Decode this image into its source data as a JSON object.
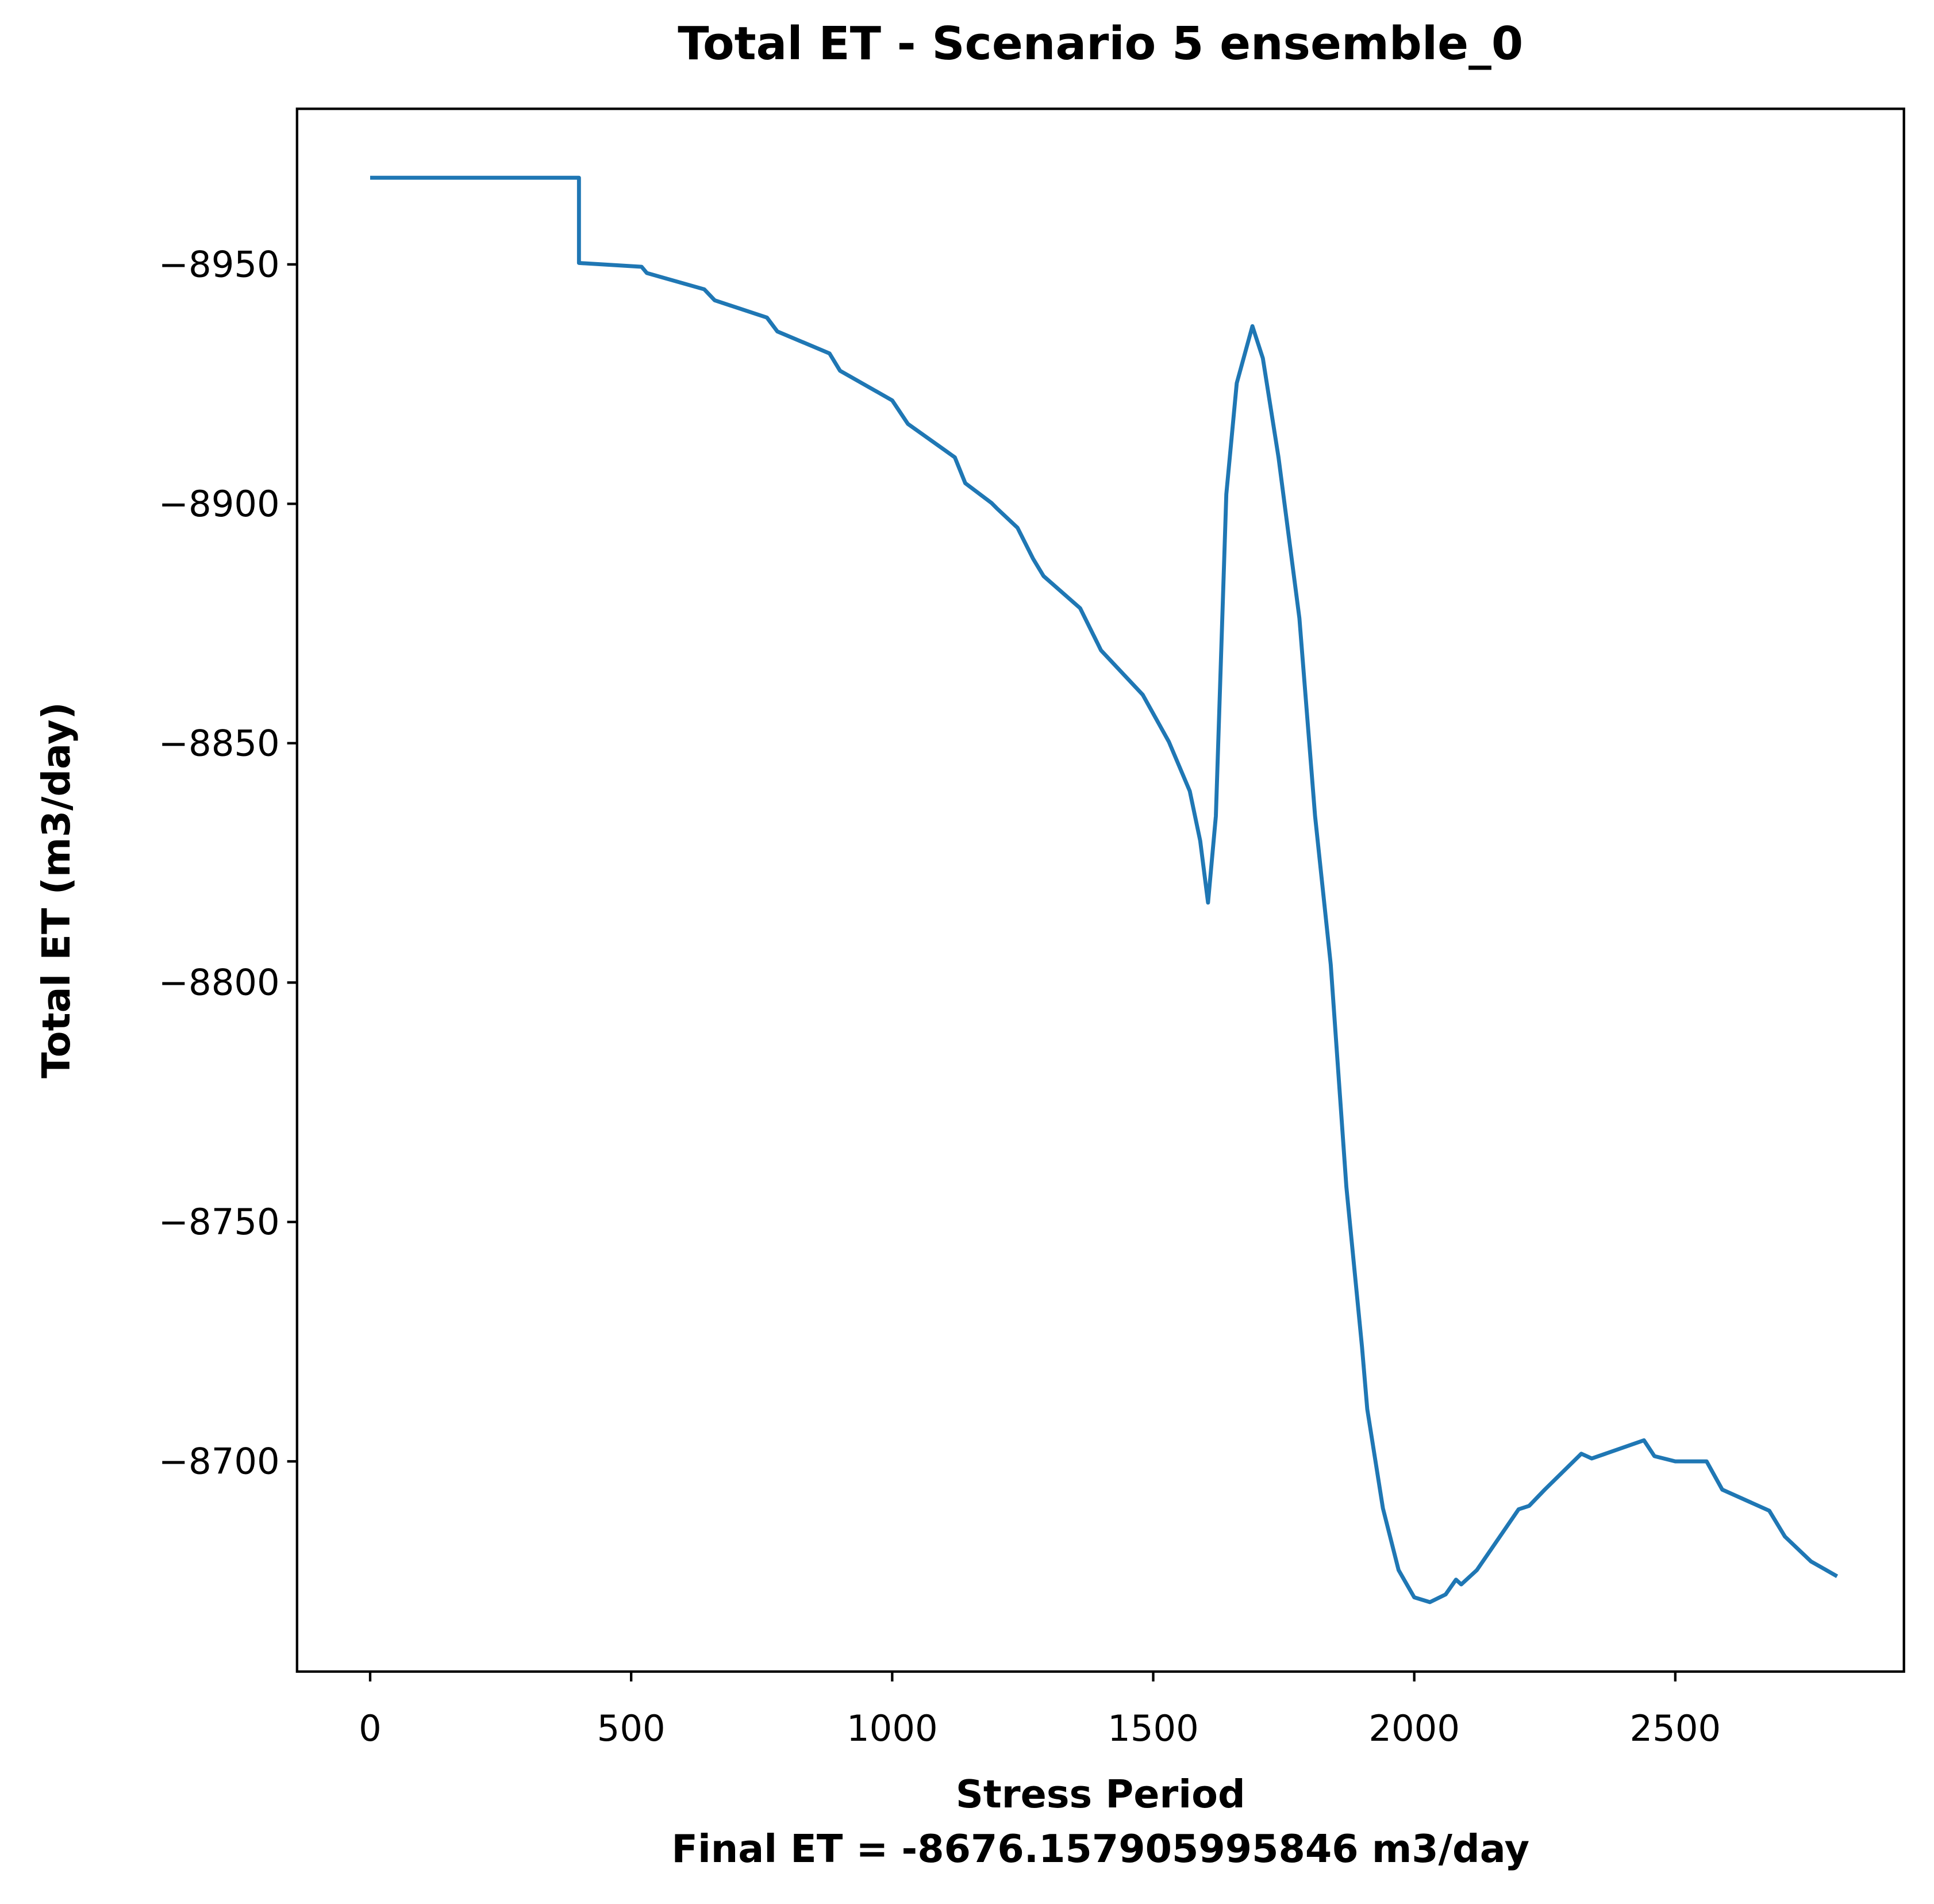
{
  "chart_data": {
    "type": "line",
    "title": "Total ET - Scenario 5 ensemble_0",
    "xlabel": "Stress Period",
    "annotation": "Final ET = -8676.157905995846 m3/day",
    "ylabel": "Total ET (m3/day)",
    "x": [
      0,
      400,
      400,
      520,
      530,
      640,
      660,
      760,
      780,
      880,
      900,
      1000,
      1030,
      1120,
      1140,
      1190,
      1200,
      1240,
      1270,
      1290,
      1360,
      1400,
      1480,
      1530,
      1570,
      1590,
      1605,
      1620,
      1640,
      1660,
      1690,
      1710,
      1740,
      1780,
      1810,
      1840,
      1870,
      1900,
      1910,
      1940,
      1970,
      2000,
      2030,
      2060,
      2080,
      2090,
      2120,
      2200,
      2220,
      2250,
      2320,
      2340,
      2440,
      2460,
      2500,
      2560,
      2590,
      2680,
      2710,
      2760,
      2810
    ],
    "series": [
      {
        "name": "Total ET",
        "color": "#1f77b4",
        "values": [
          -8968.1,
          -8968.1,
          -8950.3,
          -8949.5,
          -8948.2,
          -8944.8,
          -8942.5,
          -8938.9,
          -8936,
          -8931.4,
          -8927.8,
          -8921.6,
          -8916.7,
          -8909.7,
          -8904.3,
          -8900.2,
          -8899.1,
          -8895,
          -8888.5,
          -8884.9,
          -8878.2,
          -8869.4,
          -8860.1,
          -8850.3,
          -8840,
          -8829.6,
          -8816.7,
          -8834.8,
          -8902,
          -8925.2,
          -8937.1,
          -8930.4,
          -8909.7,
          -8876.1,
          -8834.8,
          -8803.8,
          -8757.3,
          -8723.8,
          -8710.9,
          -8690.2,
          -8677.3,
          -8671.6,
          -8670.6,
          -8672.2,
          -8675.3,
          -8674.3,
          -8677.3,
          -8690,
          -8690.7,
          -8694.1,
          -8701.6,
          -8700.6,
          -8704.4,
          -8701.1,
          -8700,
          -8700,
          -8694.1,
          -8689.7,
          -8684.3,
          -8679.1,
          -8676
        ]
      }
    ],
    "xlim": [
      -140,
      2938
    ],
    "ylim": [
      -8656.1,
      -8982.5
    ],
    "xticks": [
      0,
      500,
      1000,
      1500,
      2000,
      2500
    ],
    "yticks": [
      {
        "value": -8950,
        "label": "−8950"
      },
      {
        "value": -8900,
        "label": "−8900"
      },
      {
        "value": -8850,
        "label": "−8850"
      },
      {
        "value": -8800,
        "label": "−8800"
      },
      {
        "value": -8750,
        "label": "−8750"
      },
      {
        "value": -8700,
        "label": "−8700"
      }
    ],
    "grid": false
  }
}
